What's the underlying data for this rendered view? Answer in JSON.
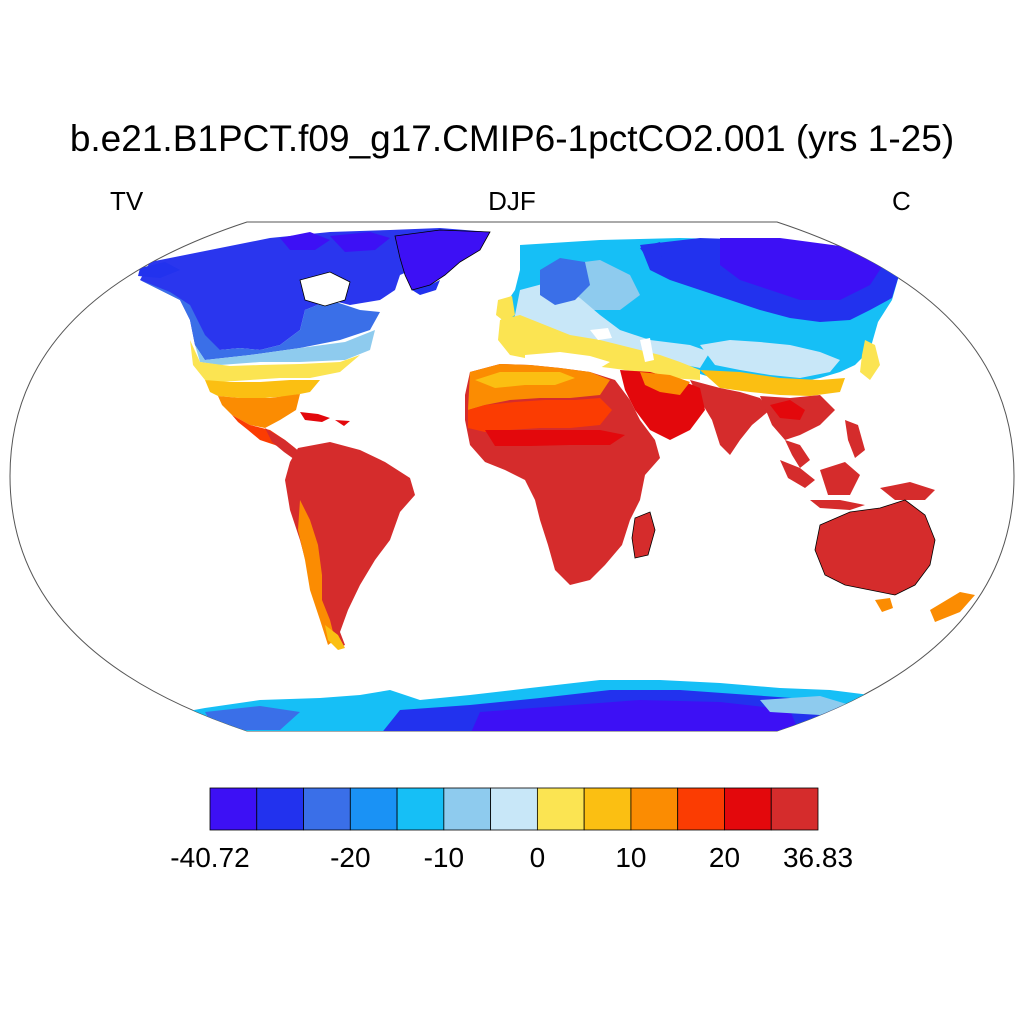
{
  "title": "b.e21.B1PCT.f09_g17.CMIP6-1pctCO2.001 (yrs 1-25)",
  "subtitle_left": "TV",
  "subtitle_center": "DJF",
  "subtitle_right": "C",
  "colorbar": {
    "colors": [
      "#3d10f5",
      "#2232ee",
      "#3a6fe8",
      "#1a92f5",
      "#16bff6",
      "#8ecbee",
      "#c8e7f8",
      "#fbe452",
      "#fbbf12",
      "#fb8c02",
      "#fb3c02",
      "#e3080c",
      "#d52c2c"
    ],
    "labels": [
      "-40.72",
      "-20",
      "-10",
      "0",
      "10",
      "20",
      "36.83"
    ],
    "label_boundary_index": [
      0,
      3,
      5,
      7,
      9,
      11,
      13
    ]
  }
}
